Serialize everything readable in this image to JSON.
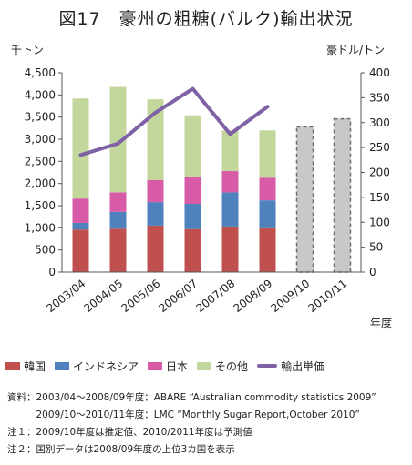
{
  "title": "図17　豪州の粗糖(バルク)輸出状況",
  "colors": {
    "korea": "#c0504d",
    "indonesia": "#4f81bd",
    "japan": "#d85ba8",
    "other": "#c3d69b",
    "price": "#7f62a5",
    "forecast": "#a6a6a6"
  },
  "chart_data": {
    "type": "bar",
    "stacked": true,
    "categories": [
      "2003/04",
      "2004/05",
      "2005/06",
      "2006/07",
      "2007/08",
      "2008/09",
      "2009/10",
      "2010/11"
    ],
    "series": [
      {
        "name": "韓国",
        "values": [
          960,
          980,
          1050,
          970,
          1030,
          990,
          null,
          null
        ]
      },
      {
        "name": "インドネシア",
        "values": [
          150,
          380,
          530,
          570,
          770,
          630,
          null,
          null
        ]
      },
      {
        "name": "日本",
        "values": [
          550,
          440,
          500,
          620,
          480,
          510,
          null,
          null
        ]
      },
      {
        "name": "その他",
        "values": [
          2260,
          2380,
          1820,
          1380,
          920,
          1070,
          null,
          null
        ]
      }
    ],
    "estimate_totals": [
      null,
      null,
      null,
      null,
      null,
      null,
      3280,
      3460
    ],
    "line_series": {
      "name": "輸出単価",
      "axis": "right",
      "values": [
        235,
        258,
        320,
        368,
        277,
        332
      ]
    },
    "left_axis": {
      "unit": "千トン",
      "ylim": [
        0,
        4500
      ],
      "ticks": [
        "0",
        "500",
        "1,000",
        "1,500",
        "2,000",
        "2,500",
        "3,000",
        "3,500",
        "4,000",
        "4,500"
      ]
    },
    "right_axis": {
      "unit": "豪ドル/トン",
      "ylim": [
        0,
        400
      ],
      "ticks": [
        "0",
        "50",
        "100",
        "150",
        "200",
        "250",
        "300",
        "350",
        "400"
      ]
    },
    "xlabel": "年度",
    "legend_position": "bottom"
  },
  "notes": [
    "資料：2003/04～2008/09年度：ABARE “Australian commodity statistics 2009”",
    "　　　2009/10～2010/11年度：LMC “Monthly Sugar Report,October 2010”",
    "注１：2009/10年度は推定値、2010/2011年度は予測値",
    "注２：国別データは2008/09年度の上位3カ国を表示"
  ]
}
